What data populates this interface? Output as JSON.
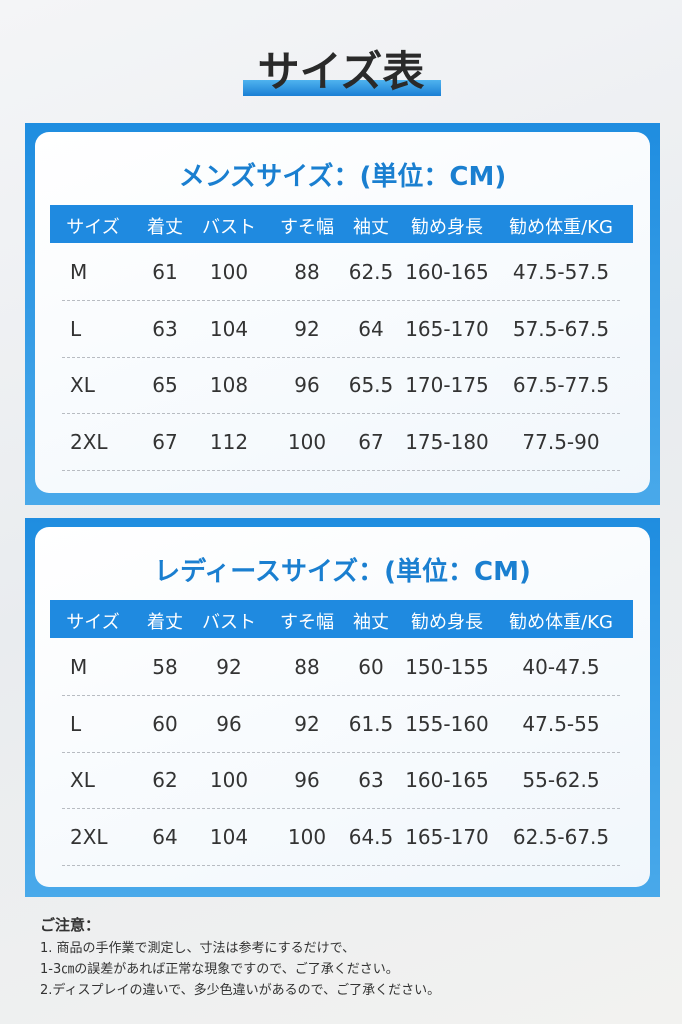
{
  "title": "サイズ表",
  "tables": [
    {
      "title": "メンズサイズ：(単位：CM)",
      "headers": [
        "サイズ",
        "着丈",
        "バスト",
        "すそ幅",
        "袖丈",
        "勧め身長",
        "勧め体重/KG"
      ],
      "rows": [
        [
          "M",
          "61",
          "100",
          "88",
          "62.5",
          "160-165",
          "47.5-57.5"
        ],
        [
          "L",
          "63",
          "104",
          "92",
          "64",
          "165-170",
          "57.5-67.5"
        ],
        [
          "XL",
          "65",
          "108",
          "96",
          "65.5",
          "170-175",
          "67.5-77.5"
        ],
        [
          "2XL",
          "67",
          "112",
          "100",
          "67",
          "175-180",
          "77.5-90"
        ]
      ]
    },
    {
      "title": "レディースサイズ：(単位：CM)",
      "headers": [
        "サイズ",
        "着丈",
        "バスト",
        "すそ幅",
        "袖丈",
        "勧め身長",
        "勧め体重/KG"
      ],
      "rows": [
        [
          "M",
          "58",
          "92",
          "88",
          "60",
          "150-155",
          "40-47.5"
        ],
        [
          "L",
          "60",
          "96",
          "92",
          "61.5",
          "155-160",
          "47.5-55"
        ],
        [
          "XL",
          "62",
          "100",
          "96",
          "63",
          "160-165",
          "55-62.5"
        ],
        [
          "2XL",
          "64",
          "104",
          "100",
          "64.5",
          "165-170",
          "62.5-67.5"
        ]
      ]
    }
  ],
  "notes": {
    "title": "ご注意：",
    "lines": [
      "1. 商品の手作業で測定し、寸法は参考にするだけで、",
      "1-3㎝の誤差があれば正常な現象ですので、ご了承ください。",
      "2.ディスプレイの違いで、多少色違いがあるので、ご了承ください。"
    ]
  }
}
